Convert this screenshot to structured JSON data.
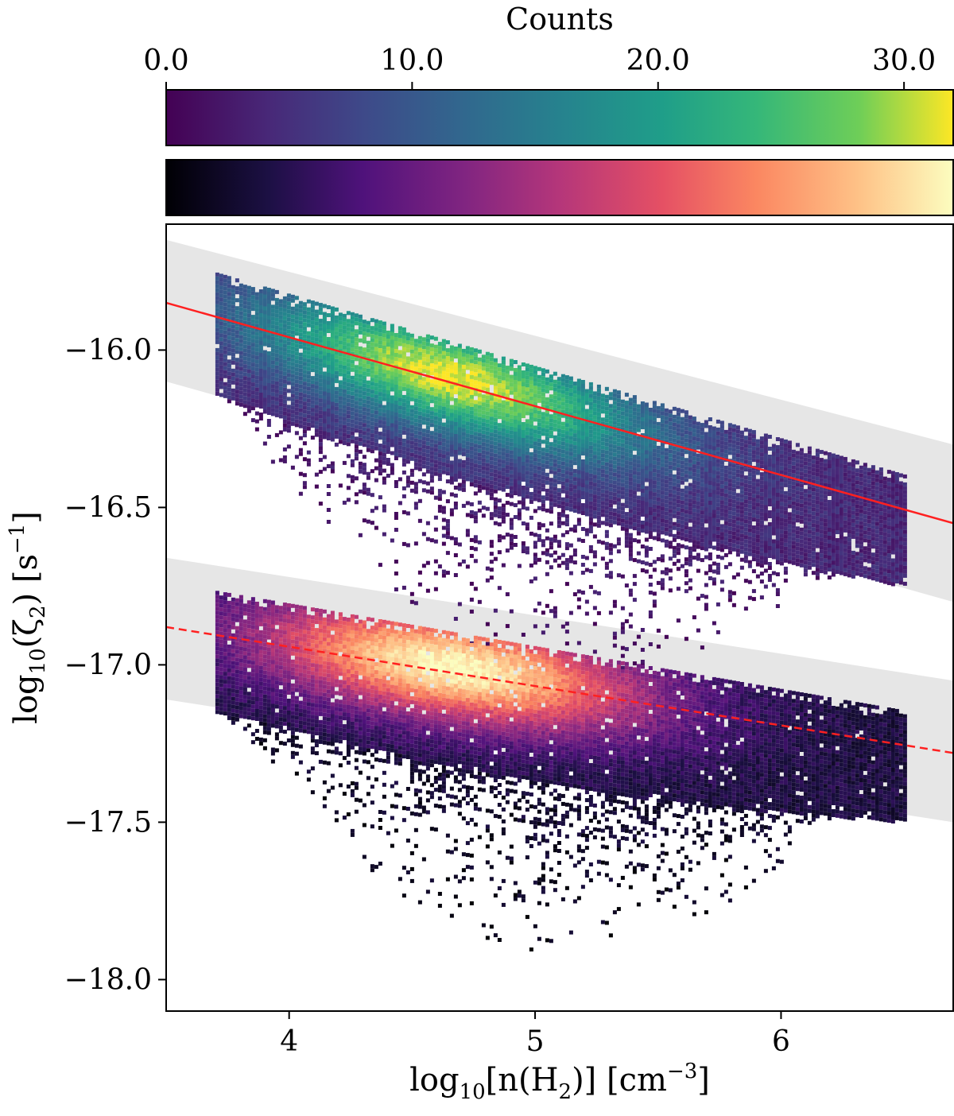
{
  "colorbar": {
    "title": "Counts",
    "ticks": [
      "0.0",
      "10.0",
      "20.0",
      "30.0"
    ],
    "tick_values": [
      0,
      10,
      20,
      30
    ],
    "range": [
      0,
      32
    ],
    "colormaps": [
      "viridis",
      "magma"
    ]
  },
  "chart_data": {
    "type": "heatmap",
    "xlabel": "log10[n(H2)] [cm^-3]",
    "ylabel": "log10(ζ2) [s^-1]",
    "xlim": [
      3.5,
      6.7
    ],
    "ylim": [
      -18.1,
      -15.6
    ],
    "x_ticks": [
      4,
      5,
      6
    ],
    "x_tick_labels": [
      "4",
      "5",
      "6"
    ],
    "y_ticks": [
      -16.0,
      -16.5,
      -17.0,
      -17.5,
      -18.0
    ],
    "y_tick_labels": [
      "−16.0",
      "−16.5",
      "−17.0",
      "−17.5",
      "−18.0"
    ],
    "grid": false,
    "series": [
      {
        "colormap": "viridis",
        "x_range": [
          3.7,
          6.5
        ],
        "peak_center": [
          4.65,
          -16.08
        ],
        "peak_count": 32,
        "fit_line": {
          "style": "solid",
          "color": "#ff2020",
          "x": [
            3.5,
            6.7
          ],
          "y": [
            -15.85,
            -16.55
          ]
        },
        "band": {
          "color": "#e6e6e6",
          "upper": [
            -15.65,
            -16.3
          ],
          "lower": [
            -16.1,
            -16.8
          ]
        }
      },
      {
        "colormap": "magma",
        "x_range": [
          3.7,
          6.5
        ],
        "peak_center": [
          4.65,
          -17.0
        ],
        "peak_count": 32,
        "fit_line": {
          "style": "dashed",
          "color": "#ff2020",
          "x": [
            3.5,
            6.7
          ],
          "y": [
            -16.88,
            -17.28
          ]
        },
        "band": {
          "color": "#e6e6e6",
          "upper": [
            -16.66,
            -17.05
          ],
          "lower": [
            -17.11,
            -17.5
          ]
        }
      }
    ]
  }
}
